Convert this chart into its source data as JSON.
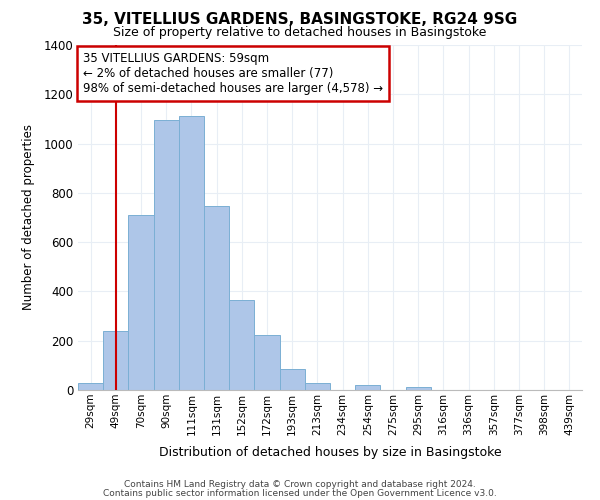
{
  "title": "35, VITELLIUS GARDENS, BASINGSTOKE, RG24 9SG",
  "subtitle": "Size of property relative to detached houses in Basingstoke",
  "xlabel": "Distribution of detached houses by size in Basingstoke",
  "ylabel": "Number of detached properties",
  "bar_labels": [
    "29sqm",
    "49sqm",
    "70sqm",
    "90sqm",
    "111sqm",
    "131sqm",
    "152sqm",
    "172sqm",
    "193sqm",
    "213sqm",
    "234sqm",
    "254sqm",
    "275sqm",
    "295sqm",
    "316sqm",
    "336sqm",
    "357sqm",
    "377sqm",
    "398sqm",
    "439sqm"
  ],
  "bar_values": [
    30,
    240,
    710,
    1095,
    1110,
    748,
    365,
    225,
    85,
    30,
    0,
    20,
    0,
    12,
    0,
    0,
    0,
    0,
    0,
    0
  ],
  "bar_color": "#aec6e8",
  "bar_edge_color": "#7bafd4",
  "vline_x_idx": 1,
  "vline_color": "#cc0000",
  "annotation_text": "35 VITELLIUS GARDENS: 59sqm\n← 2% of detached houses are smaller (77)\n98% of semi-detached houses are larger (4,578) →",
  "annotation_box_color": "#ffffff",
  "annotation_box_edgecolor": "#cc0000",
  "ylim": [
    0,
    1400
  ],
  "yticks": [
    0,
    200,
    400,
    600,
    800,
    1000,
    1200,
    1400
  ],
  "footer_line1": "Contains HM Land Registry data © Crown copyright and database right 2024.",
  "footer_line2": "Contains public sector information licensed under the Open Government Licence v3.0.",
  "grid_color": "#e8eef5",
  "background_color": "#ffffff"
}
